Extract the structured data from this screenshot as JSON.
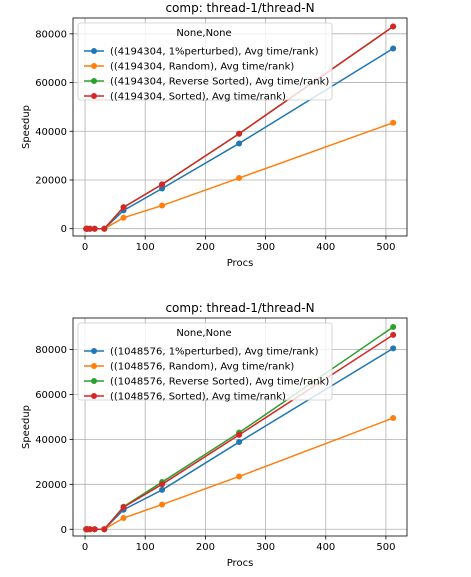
{
  "chart_data": [
    {
      "type": "line",
      "title": "comp: thread-1/thread-N",
      "xlabel": "Procs",
      "ylabel": "Speedup",
      "legend_title": "None,None",
      "legend_loc": "upper left",
      "grid": true,
      "xlim": [
        -20,
        535
      ],
      "ylim": [
        -3000,
        86500
      ],
      "xticks": [
        0,
        100,
        200,
        300,
        400,
        500
      ],
      "yticks": [
        0,
        20000,
        40000,
        60000,
        80000
      ],
      "x": [
        2,
        4,
        8,
        16,
        32,
        64,
        128,
        256,
        512
      ],
      "series": [
        {
          "name": "((4194304, 1%perturbed), Avg time/rank)",
          "color": "#1f77b4",
          "values": [
            0,
            0,
            0,
            0,
            0,
            7500,
            16500,
            35000,
            74000
          ]
        },
        {
          "name": "((4194304, Random), Avg time/rank)",
          "color": "#ff7f0e",
          "values": [
            0,
            0,
            0,
            0,
            0,
            4500,
            9500,
            20800,
            43500
          ]
        },
        {
          "name": "((4194304, Reverse Sorted), Avg time/rank)",
          "color": "#2ca02c",
          "values": [
            0,
            0,
            0,
            0,
            0,
            8800,
            18200,
            39000,
            83000
          ]
        },
        {
          "name": "((4194304, Sorted), Avg time/rank)",
          "color": "#d62728",
          "values": [
            0,
            0,
            0,
            0,
            0,
            8800,
            18200,
            39000,
            83000
          ]
        }
      ]
    },
    {
      "type": "line",
      "title": "comp: thread-1/thread-N",
      "xlabel": "Procs",
      "ylabel": "Speedup",
      "legend_title": "None,None",
      "legend_loc": "upper left",
      "grid": true,
      "xlim": [
        -20,
        535
      ],
      "ylim": [
        -3000,
        94000
      ],
      "xticks": [
        0,
        100,
        200,
        300,
        400,
        500
      ],
      "yticks": [
        0,
        20000,
        40000,
        60000,
        80000
      ],
      "x": [
        2,
        4,
        8,
        16,
        32,
        64,
        128,
        256,
        512
      ],
      "series": [
        {
          "name": "((1048576, 1%perturbed), Avg time/rank)",
          "color": "#1f77b4",
          "values": [
            0,
            0,
            0,
            0,
            0,
            8700,
            17500,
            38800,
            80500
          ]
        },
        {
          "name": "((1048576, Random), Avg time/rank)",
          "color": "#ff7f0e",
          "values": [
            0,
            0,
            0,
            0,
            0,
            5000,
            11000,
            23500,
            49500
          ]
        },
        {
          "name": "((1048576, Reverse Sorted), Avg time/rank)",
          "color": "#2ca02c",
          "values": [
            0,
            0,
            0,
            0,
            0,
            10000,
            21000,
            43000,
            90000
          ]
        },
        {
          "name": "((1048576, Sorted), Avg time/rank)",
          "color": "#d62728",
          "values": [
            0,
            0,
            0,
            0,
            0,
            9800,
            20000,
            42000,
            86500
          ]
        }
      ]
    }
  ]
}
